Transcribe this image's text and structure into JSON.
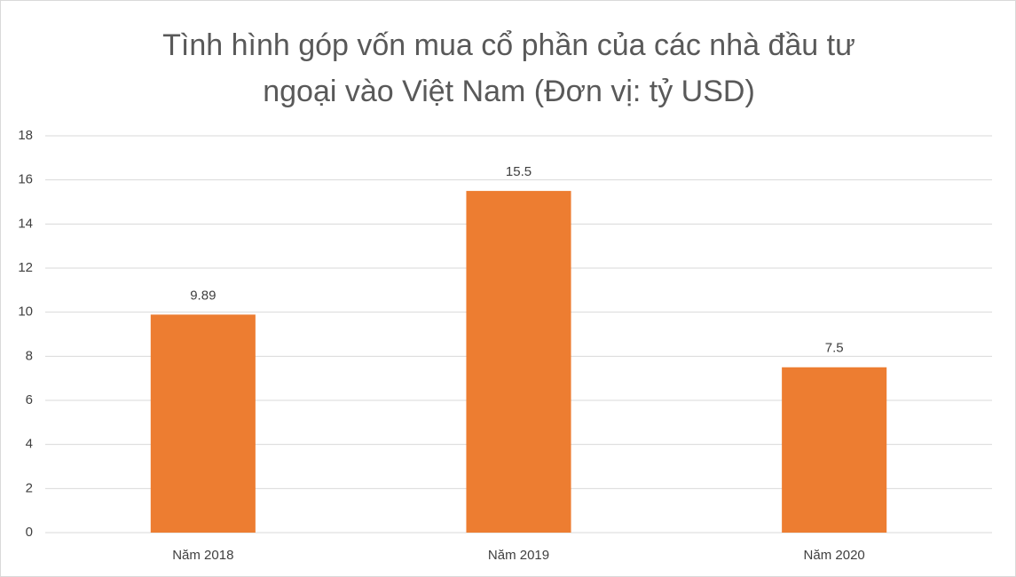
{
  "chart_data": {
    "type": "bar",
    "title": "Tình hình góp vốn mua cổ phần của các nhà đầu tư ngoại vào Việt Nam (Đơn vị: tỷ USD)",
    "categories": [
      "Năm 2018",
      "Năm 2019",
      "Năm 2020"
    ],
    "values": [
      9.89,
      15.5,
      7.5
    ],
    "color": "#ed7d31",
    "ylim": [
      0,
      18
    ],
    "yticks": [
      0,
      2,
      4,
      6,
      8,
      10,
      12,
      14,
      16,
      18
    ],
    "grid": true
  }
}
